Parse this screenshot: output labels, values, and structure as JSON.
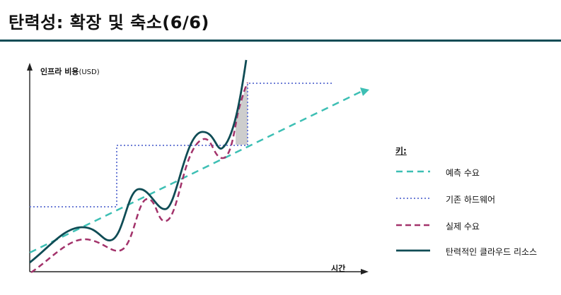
{
  "title": "탄력성: 확장 및 축소(6/6)",
  "axes": {
    "y_label": "인프라 비용",
    "y_unit": "(USD)",
    "x_label": "시간"
  },
  "legend": {
    "title": "키:",
    "items": [
      {
        "label": "예측 수요",
        "color": "#3dbfb4",
        "style": "dashed"
      },
      {
        "label": "기존 하드웨어",
        "color": "#6f7fd6",
        "style": "dotted"
      },
      {
        "label": "실제 수요",
        "color": "#a3336b",
        "style": "dashed"
      },
      {
        "label": "탄력적인 클라우드 리소스",
        "color": "#0f4c55",
        "style": "solid"
      }
    ]
  },
  "colors": {
    "accent_rule": "#0f4c55",
    "gap_fill": "#c8c8c8"
  }
}
